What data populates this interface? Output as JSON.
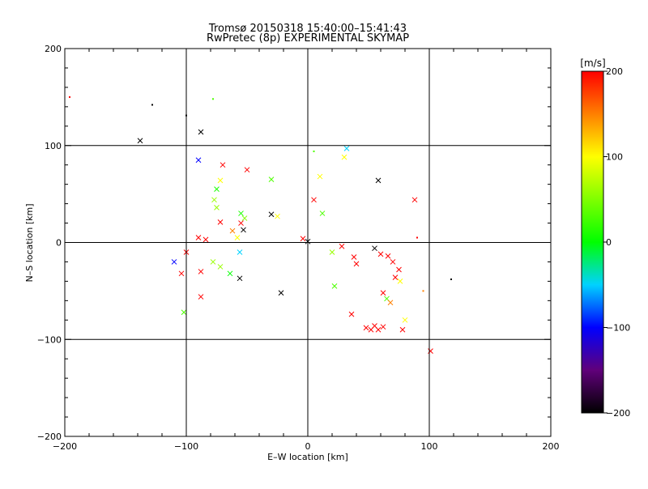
{
  "chart_data": {
    "type": "scatter",
    "title": "Tromsø 20150318 15:40:00–15:41:43",
    "subtitle": "RwPretec (8p) EXPERIMENTAL SKYMAP",
    "xlabel": "E–W location [km]",
    "ylabel": "N–S location [km]",
    "xlim": [
      -200,
      200
    ],
    "ylim": [
      -200,
      200
    ],
    "x_ticks": [
      -200,
      -100,
      0,
      100,
      200
    ],
    "y_ticks": [
      -200,
      -100,
      0,
      100,
      200
    ],
    "grid": true,
    "colorbar": {
      "label": "[m/s]",
      "range": [
        -200,
        200
      ],
      "ticks": [
        200,
        100,
        0,
        -100,
        -200
      ]
    },
    "crosses": [
      {
        "x": -138,
        "y": 105,
        "v": -200
      },
      {
        "x": -88,
        "y": 114,
        "v": -200
      },
      {
        "x": -90,
        "y": 85,
        "v": -100
      },
      {
        "x": -75,
        "y": 55,
        "v": 10
      },
      {
        "x": -72,
        "y": 64,
        "v": 100
      },
      {
        "x": -70,
        "y": 80,
        "v": 200
      },
      {
        "x": -50,
        "y": 75,
        "v": 200
      },
      {
        "x": -30,
        "y": 65,
        "v": 30
      },
      {
        "x": -77,
        "y": 44,
        "v": 60
      },
      {
        "x": -75,
        "y": 36,
        "v": 60
      },
      {
        "x": -72,
        "y": 21,
        "v": 200
      },
      {
        "x": -55,
        "y": 30,
        "v": 10
      },
      {
        "x": -52,
        "y": 25,
        "v": 50
      },
      {
        "x": -55,
        "y": 20,
        "v": 200
      },
      {
        "x": -62,
        "y": 12,
        "v": 150
      },
      {
        "x": -53,
        "y": 13,
        "v": -200
      },
      {
        "x": -30,
        "y": 29,
        "v": -200
      },
      {
        "x": -25,
        "y": 27,
        "v": 100
      },
      {
        "x": -90,
        "y": 5,
        "v": 200
      },
      {
        "x": -84,
        "y": 3,
        "v": 200
      },
      {
        "x": -100,
        "y": -10,
        "v": 200
      },
      {
        "x": -110,
        "y": -20,
        "v": -100
      },
      {
        "x": -104,
        "y": -32,
        "v": 200
      },
      {
        "x": -88,
        "y": -30,
        "v": 200
      },
      {
        "x": -78,
        "y": -20,
        "v": 60
      },
      {
        "x": -72,
        "y": -25,
        "v": 60
      },
      {
        "x": -64,
        "y": -32,
        "v": 0
      },
      {
        "x": -56,
        "y": -37,
        "v": -200
      },
      {
        "x": -88,
        "y": -56,
        "v": 200
      },
      {
        "x": -102,
        "y": -72,
        "v": 30
      },
      {
        "x": -56,
        "y": -10,
        "v": -50
      },
      {
        "x": -58,
        "y": 5,
        "v": 100
      },
      {
        "x": -4,
        "y": 4,
        "v": 200
      },
      {
        "x": 0,
        "y": 1,
        "v": -200
      },
      {
        "x": 5,
        "y": 44,
        "v": 200
      },
      {
        "x": 10,
        "y": 68,
        "v": 100
      },
      {
        "x": 12,
        "y": 30,
        "v": 30
      },
      {
        "x": 30,
        "y": 88,
        "v": 100
      },
      {
        "x": 32,
        "y": 97,
        "v": -50
      },
      {
        "x": 58,
        "y": 64,
        "v": -200
      },
      {
        "x": 88,
        "y": 44,
        "v": 200
      },
      {
        "x": 20,
        "y": -10,
        "v": 60
      },
      {
        "x": 28,
        "y": -4,
        "v": 200
      },
      {
        "x": 38,
        "y": -15,
        "v": 200
      },
      {
        "x": 40,
        "y": -22,
        "v": 200
      },
      {
        "x": 55,
        "y": -6,
        "v": -200
      },
      {
        "x": 60,
        "y": -12,
        "v": 200
      },
      {
        "x": 66,
        "y": -14,
        "v": 200
      },
      {
        "x": 70,
        "y": -20,
        "v": 200
      },
      {
        "x": 75,
        "y": -28,
        "v": 200
      },
      {
        "x": 72,
        "y": -36,
        "v": 200
      },
      {
        "x": 76,
        "y": -40,
        "v": 100
      },
      {
        "x": 62,
        "y": -52,
        "v": 200
      },
      {
        "x": 65,
        "y": -58,
        "v": 30
      },
      {
        "x": 68,
        "y": -62,
        "v": 150
      },
      {
        "x": 80,
        "y": -80,
        "v": 100
      },
      {
        "x": 36,
        "y": -74,
        "v": 200
      },
      {
        "x": 48,
        "y": -88,
        "v": 200
      },
      {
        "x": 52,
        "y": -90,
        "v": 200
      },
      {
        "x": 55,
        "y": -86,
        "v": 200
      },
      {
        "x": 58,
        "y": -90,
        "v": 200
      },
      {
        "x": 62,
        "y": -87,
        "v": 200
      },
      {
        "x": 78,
        "y": -90,
        "v": 200
      },
      {
        "x": 101,
        "y": -112,
        "v": 200
      },
      {
        "x": -22,
        "y": -52,
        "v": -200
      },
      {
        "x": 22,
        "y": -45,
        "v": 30
      }
    ],
    "dots": [
      {
        "x": -128,
        "y": 142,
        "v": -200
      },
      {
        "x": -100,
        "y": 131,
        "v": -200
      },
      {
        "x": -78,
        "y": 148,
        "v": 30
      },
      {
        "x": -196,
        "y": 150,
        "v": 200
      },
      {
        "x": 118,
        "y": -38,
        "v": -200
      },
      {
        "x": 90,
        "y": 5,
        "v": 200
      },
      {
        "x": 95,
        "y": -50,
        "v": 150
      },
      {
        "x": 5,
        "y": 94,
        "v": 30
      }
    ]
  }
}
